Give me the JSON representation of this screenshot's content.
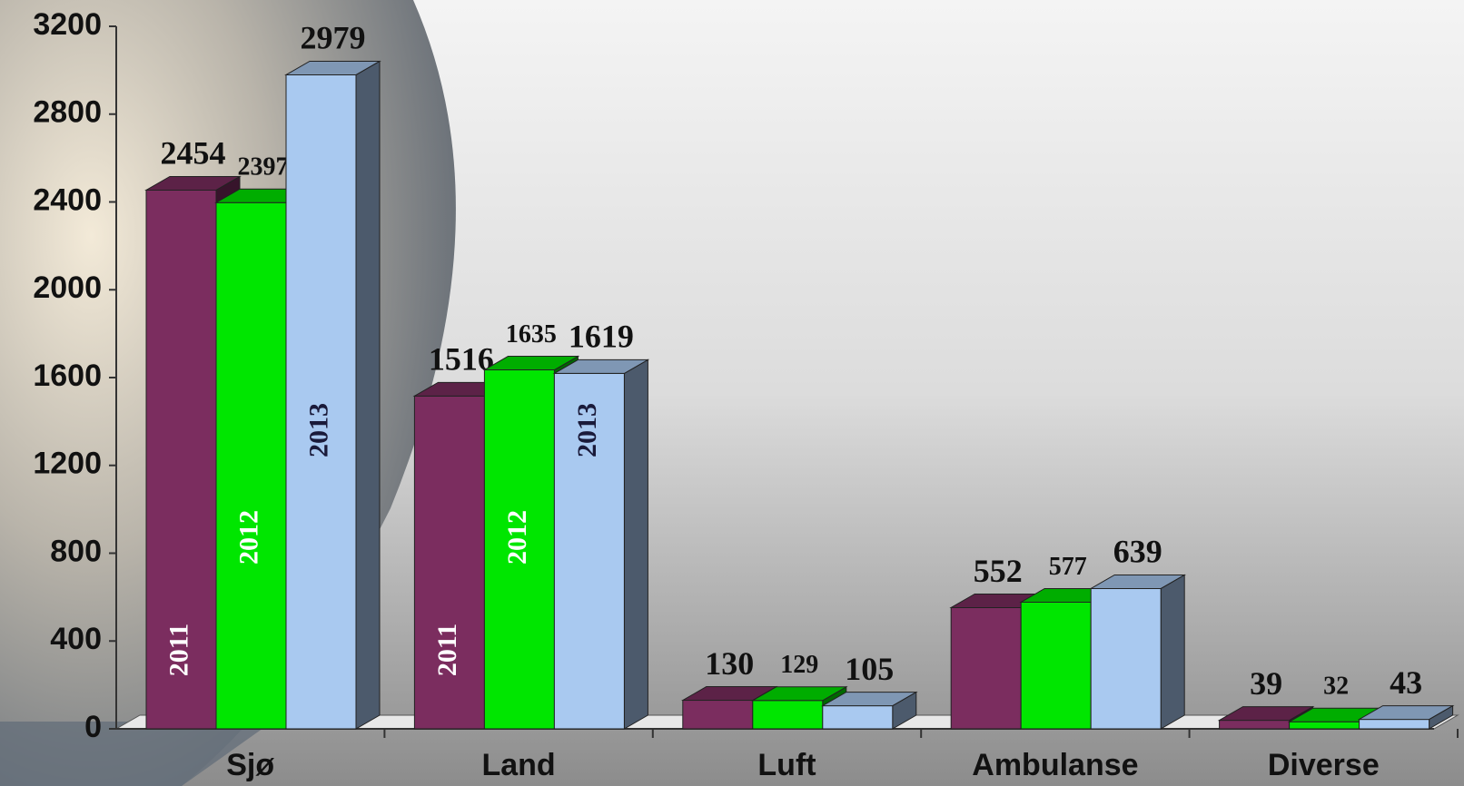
{
  "chart_data": {
    "type": "bar3d",
    "categories": [
      "Sjø",
      "Land",
      "Luft",
      "Ambulanse",
      "Diverse"
    ],
    "series": [
      {
        "name": "2011",
        "color": "#7b2d5f",
        "values": [
          2454,
          1516,
          130,
          552,
          39
        ]
      },
      {
        "name": "2012",
        "color": "#00e600",
        "values": [
          2397,
          1635,
          129,
          577,
          32
        ]
      },
      {
        "name": "2013",
        "color": "#a9c9f0",
        "values": [
          2979,
          1619,
          105,
          639,
          43
        ]
      }
    ],
    "ylim": [
      0,
      3200
    ],
    "yticks": [
      0,
      400,
      800,
      1200,
      1600,
      2000,
      2400,
      2800,
      3200
    ]
  }
}
